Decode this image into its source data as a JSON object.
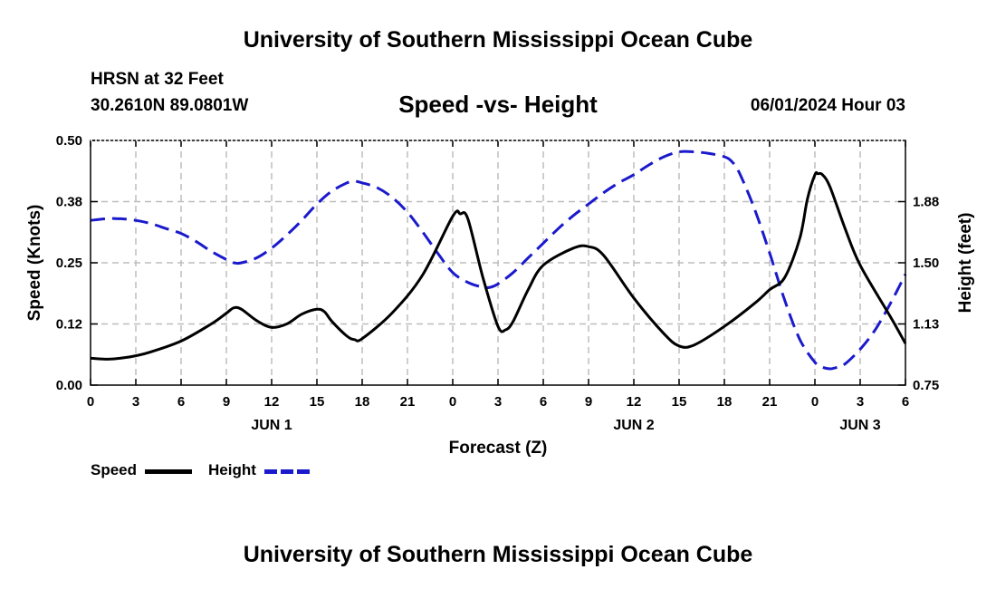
{
  "header": {
    "title": "University of Southern Mississippi Ocean Cube",
    "station": "HRSN at 32 Feet",
    "coordinates": "30.2610N  89.0801W",
    "subtitle": "Speed -vs- Height",
    "datetime": "06/01/2024 Hour 03"
  },
  "footer": {
    "title": "University of Southern Mississippi Ocean Cube"
  },
  "legend": {
    "speed_label": "Speed",
    "height_label": "Height",
    "speed_color": "#000000",
    "height_color": "#1a1acc"
  },
  "chart_data": {
    "type": "line",
    "xlabel": "Forecast (Z)",
    "ylabel_left": "Speed (Knots)",
    "ylabel_right": "Height (feet)",
    "x_range_hours": [
      0,
      54
    ],
    "ylim_left": [
      0,
      0.5
    ],
    "ylim_right": [
      0.75,
      2.25
    ],
    "x_ticks": [
      {
        "hour": 0,
        "label": "0"
      },
      {
        "hour": 3,
        "label": "3"
      },
      {
        "hour": 6,
        "label": "6"
      },
      {
        "hour": 9,
        "label": "9"
      },
      {
        "hour": 12,
        "label": "12"
      },
      {
        "hour": 15,
        "label": "15"
      },
      {
        "hour": 18,
        "label": "18"
      },
      {
        "hour": 21,
        "label": "21"
      },
      {
        "hour": 24,
        "label": "0"
      },
      {
        "hour": 27,
        "label": "3"
      },
      {
        "hour": 30,
        "label": "6"
      },
      {
        "hour": 33,
        "label": "9"
      },
      {
        "hour": 36,
        "label": "12"
      },
      {
        "hour": 39,
        "label": "15"
      },
      {
        "hour": 42,
        "label": "18"
      },
      {
        "hour": 45,
        "label": "21"
      },
      {
        "hour": 48,
        "label": "0"
      },
      {
        "hour": 51,
        "label": "3"
      },
      {
        "hour": 54,
        "label": "6"
      }
    ],
    "day_labels": [
      {
        "hour": 12,
        "label": "JUN 1"
      },
      {
        "hour": 36,
        "label": "JUN 2"
      },
      {
        "hour": 51,
        "label": "JUN 3"
      }
    ],
    "y_ticks_left": [
      {
        "value": 0,
        "label": "0.00"
      },
      {
        "value": 0.125,
        "label": "0.12"
      },
      {
        "value": 0.25,
        "label": "0.25"
      },
      {
        "value": 0.375,
        "label": "0.38"
      },
      {
        "value": 0.5,
        "label": "0.50"
      }
    ],
    "y_ticks_right": [
      {
        "value": 0.75,
        "label": "0.75"
      },
      {
        "value": 1.125,
        "label": "1.13"
      },
      {
        "value": 1.5,
        "label": "1.50"
      },
      {
        "value": 1.875,
        "label": "1.88"
      }
    ],
    "series": [
      {
        "name": "Speed",
        "axis": "left",
        "style": "solid",
        "x": [
          0,
          1,
          2,
          3,
          4,
          6,
          8,
          9,
          9.5,
          10,
          11,
          12,
          13,
          14,
          15,
          15.5,
          16,
          17,
          17.5,
          18,
          20,
          22,
          24,
          24.5,
          25,
          26,
          27,
          27.5,
          28,
          29,
          30,
          32,
          33,
          34,
          36,
          38,
          39,
          40,
          42,
          44,
          45,
          46,
          47,
          47.5,
          48,
          48.2,
          48.5,
          49,
          50,
          51,
          53,
          54
        ],
        "values": [
          0.055,
          0.053,
          0.055,
          0.06,
          0.068,
          0.09,
          0.125,
          0.147,
          0.158,
          0.155,
          0.132,
          0.118,
          0.125,
          0.145,
          0.155,
          0.15,
          0.13,
          0.1,
          0.093,
          0.095,
          0.148,
          0.225,
          0.345,
          0.35,
          0.34,
          0.22,
          0.12,
          0.113,
          0.13,
          0.195,
          0.245,
          0.28,
          0.283,
          0.265,
          0.178,
          0.105,
          0.08,
          0.082,
          0.12,
          0.167,
          0.195,
          0.22,
          0.3,
          0.38,
          0.43,
          0.432,
          0.43,
          0.405,
          0.32,
          0.245,
          0.14,
          0.085
        ]
      },
      {
        "name": "Height",
        "axis": "right",
        "style": "dashed",
        "x": [
          0,
          1,
          2,
          3,
          4,
          5,
          6,
          7,
          8,
          9,
          9.5,
          10,
          11,
          12,
          13,
          14,
          15,
          16,
          17,
          17.5,
          18,
          19,
          20,
          21,
          22,
          23,
          24,
          25,
          26,
          26.5,
          27,
          28,
          29,
          30,
          31,
          32,
          33,
          34,
          35,
          36,
          37,
          38,
          39,
          40,
          41,
          42,
          42.5,
          43,
          44,
          45,
          46,
          47,
          48,
          48.5,
          49,
          49.5,
          50,
          51,
          52,
          53,
          54
        ],
        "values": [
          1.76,
          1.77,
          1.77,
          1.76,
          1.74,
          1.71,
          1.68,
          1.63,
          1.57,
          1.52,
          1.5,
          1.5,
          1.53,
          1.59,
          1.67,
          1.76,
          1.86,
          1.94,
          1.99,
          2.0,
          1.99,
          1.96,
          1.9,
          1.81,
          1.69,
          1.56,
          1.44,
          1.38,
          1.35,
          1.35,
          1.37,
          1.44,
          1.53,
          1.62,
          1.71,
          1.79,
          1.86,
          1.93,
          1.99,
          2.04,
          2.1,
          2.15,
          2.18,
          2.18,
          2.17,
          2.15,
          2.12,
          2.05,
          1.83,
          1.56,
          1.27,
          1.03,
          0.89,
          0.86,
          0.85,
          0.86,
          0.88,
          0.97,
          1.09,
          1.25,
          1.43
        ]
      }
    ]
  }
}
